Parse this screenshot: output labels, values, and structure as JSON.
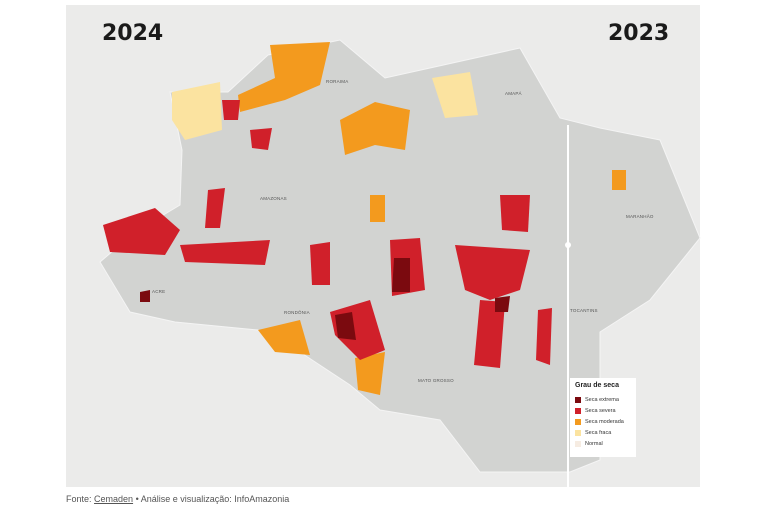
{
  "header": {
    "left_year": "2024",
    "right_year": "2023"
  },
  "map": {
    "state_labels": [
      "RORAIMA",
      "AMAPÁ",
      "AMAZONAS",
      "ACRE",
      "RONDÔNIA",
      "MATO GROSSO",
      "TOCANTINS",
      "MARANHÃO"
    ]
  },
  "legend": {
    "title": "Grau de seca",
    "items": [
      {
        "label": "Seca extrema",
        "color": "#7b0a0f"
      },
      {
        "label": "Seca severa",
        "color": "#d0202a"
      },
      {
        "label": "Seca moderada",
        "color": "#f39a1e"
      },
      {
        "label": "Seca fraca",
        "color": "#fbe3a0"
      },
      {
        "label": "Normal",
        "color": "#f6ece2"
      }
    ]
  },
  "footer": {
    "prefix": "Fonte:",
    "link": "Cemaden",
    "credit": "• Análise e visualização: InfoAmazonia"
  }
}
